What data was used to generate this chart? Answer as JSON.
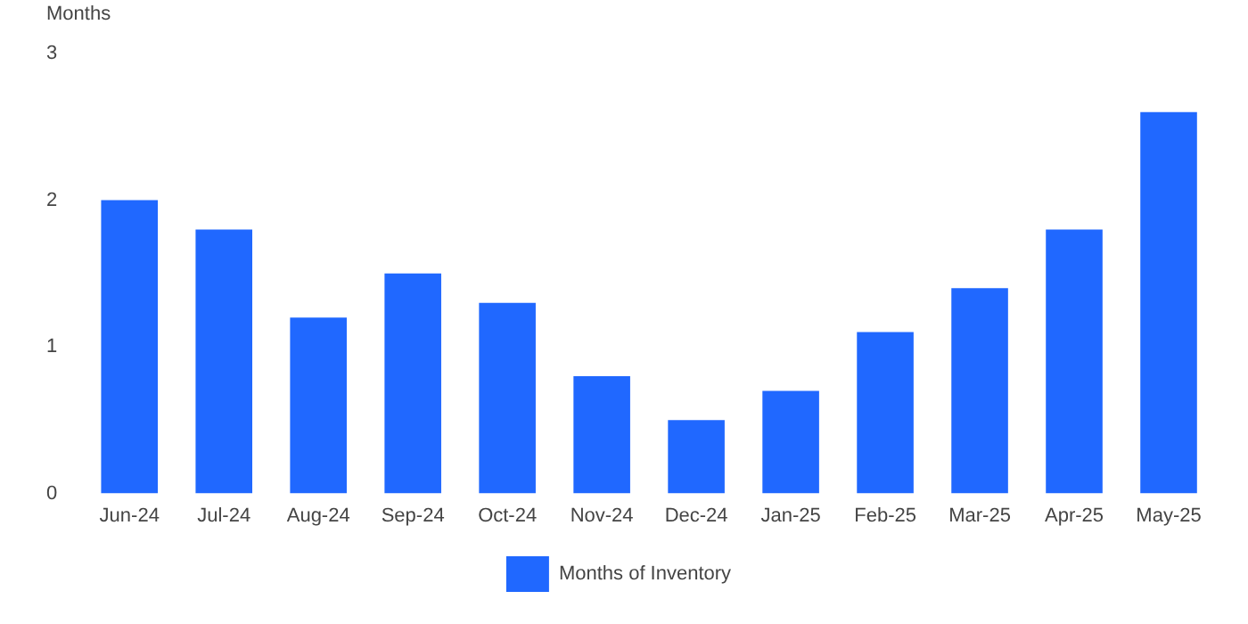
{
  "chart_data": {
    "type": "bar",
    "ylabel": "Months",
    "categories": [
      "Jun-24",
      "Jul-24",
      "Aug-24",
      "Sep-24",
      "Oct-24",
      "Nov-24",
      "Dec-24",
      "Jan-25",
      "Feb-25",
      "Mar-25",
      "Apr-25",
      "May-25"
    ],
    "series": [
      {
        "name": "Months of Inventory",
        "color": "#2068ff",
        "values": [
          2.0,
          1.8,
          1.2,
          1.5,
          1.3,
          0.8,
          0.5,
          0.7,
          1.1,
          1.4,
          1.8,
          2.6
        ]
      }
    ],
    "ylim": [
      0,
      3
    ],
    "yticks": [
      0,
      1,
      2,
      3
    ],
    "grid": false,
    "legend": "bottom"
  }
}
